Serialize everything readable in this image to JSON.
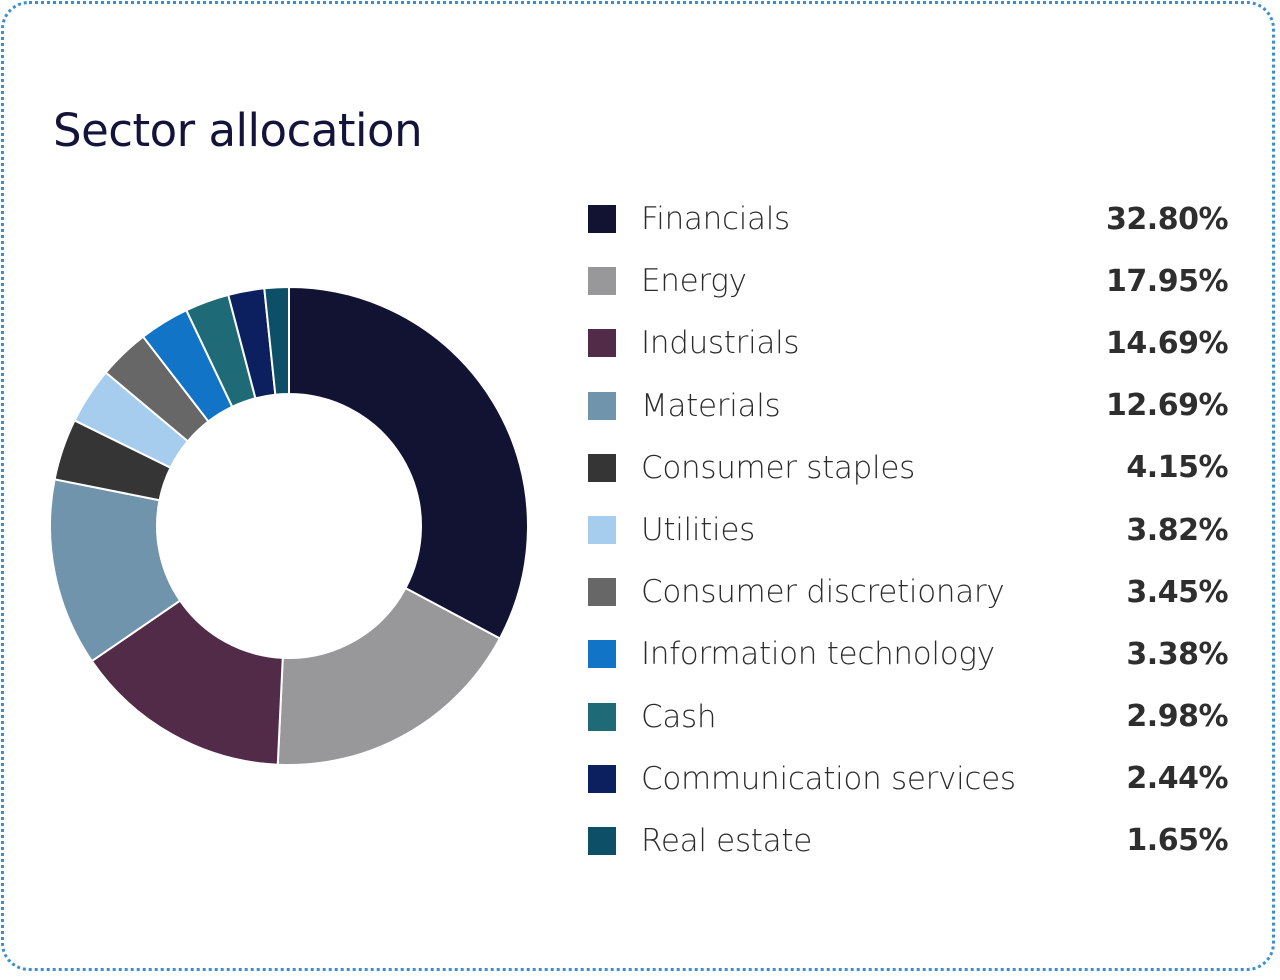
{
  "title": "Sector allocation",
  "chart_data": {
    "type": "pie",
    "variant": "donut",
    "title": "Sector allocation",
    "categories": [
      "Financials",
      "Energy",
      "Industrials",
      "Materials",
      "Consumer staples",
      "Utilities",
      "Consumer discretionary",
      "Information technology",
      "Cash",
      "Communication services",
      "Real estate"
    ],
    "values": [
      32.8,
      17.95,
      14.69,
      12.69,
      4.15,
      3.82,
      3.45,
      3.38,
      2.98,
      2.44,
      1.65
    ],
    "value_labels": [
      "32.80%",
      "17.95%",
      "14.69%",
      "12.69%",
      "4.15%",
      "3.82%",
      "3.45%",
      "3.38%",
      "2.98%",
      "2.44%",
      "1.65%"
    ],
    "colors": [
      "#121233",
      "#98989a",
      "#512b47",
      "#7094ac",
      "#353535",
      "#a6ccee",
      "#676767",
      "#1174c6",
      "#1f6a77",
      "#0c1f5e",
      "#0d4f67"
    ],
    "legend_position": "right",
    "unit": "%"
  }
}
